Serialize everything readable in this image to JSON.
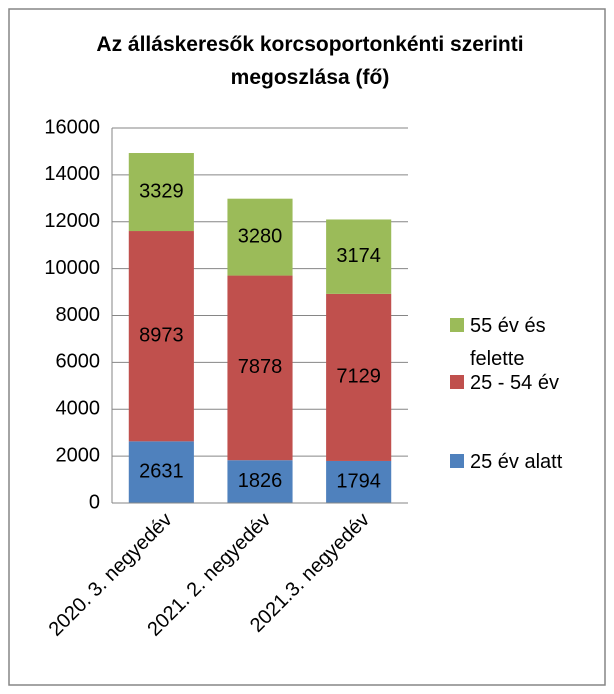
{
  "chart_data": {
    "type": "bar",
    "stacked": true,
    "title": "Az álláskeresők korcsoportonkénti szerinti megoszlása (fő)",
    "categories": [
      "2020. 3. negyedév",
      "2021. 2. negyedév",
      "2021.3. negyedév"
    ],
    "series": [
      {
        "name": "25 év alatt",
        "color": "#4f81bd",
        "values": [
          2631,
          1826,
          1794
        ]
      },
      {
        "name": "25 - 54 év",
        "color": "#c0504d",
        "values": [
          8973,
          7878,
          7129
        ]
      },
      {
        "name": "55 év és felette",
        "color": "#9bbb59",
        "values": [
          3329,
          3280,
          3174
        ]
      }
    ],
    "ylim": [
      0,
      16000
    ],
    "yticks": [
      0,
      2000,
      4000,
      6000,
      8000,
      10000,
      12000,
      14000,
      16000
    ],
    "grid": true,
    "legend": "right"
  }
}
